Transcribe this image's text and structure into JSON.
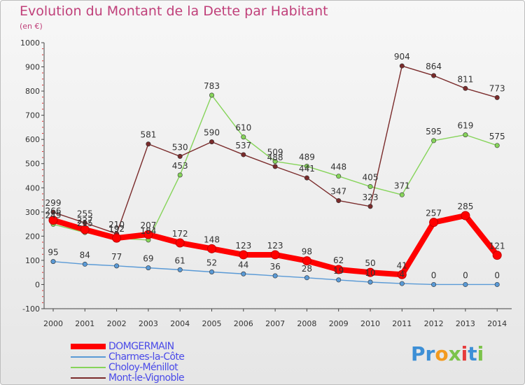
{
  "title": "Evolution du Montant de la Dette par Habitant",
  "unit_label": "(en €)",
  "brand": {
    "text": "Proxiti",
    "letters": [
      {
        "ch": "P",
        "color": "#3d8fd6"
      },
      {
        "ch": "r",
        "color": "#3d8fd6"
      },
      {
        "ch": "o",
        "color": "#f39a1f"
      },
      {
        "ch": "x",
        "color": "#7cc34b"
      },
      {
        "ch": "i",
        "color": "#e63c3c"
      },
      {
        "ch": "t",
        "color": "#3d8fd6"
      },
      {
        "ch": "i",
        "color": "#7cc34b"
      }
    ]
  },
  "chart_data": {
    "type": "line",
    "title": "Evolution du Montant de la Dette par Habitant",
    "ylabel": "(en €)",
    "xlabel": "",
    "x": [
      "2000",
      "2001",
      "2002",
      "2003",
      "2004",
      "2005",
      "2006",
      "2007",
      "2008",
      "2009",
      "2010",
      "2011",
      "2012",
      "2013",
      "2014"
    ],
    "ylim": [
      -100,
      1000
    ],
    "yticks": [
      -100,
      0,
      100,
      200,
      300,
      400,
      500,
      600,
      700,
      800,
      900,
      1000
    ],
    "grid": false,
    "legend_position": "bottom-left",
    "series": [
      {
        "name": "DOMGERMAIN",
        "color": "#ff0000",
        "emphasis": true,
        "values": [
          266,
          227,
          192,
          207,
          172,
          148,
          123,
          123,
          98,
          62,
          50,
          41,
          257,
          285,
          121
        ]
      },
      {
        "name": "Charmes-la-Côte",
        "color": "#5a9ad6",
        "values": [
          95,
          84,
          77,
          69,
          61,
          52,
          44,
          36,
          28,
          19,
          10,
          4,
          0,
          0,
          0
        ]
      },
      {
        "name": "Choloy-Ménillot",
        "color": "#86d45a",
        "values": [
          249,
          215,
          192,
          184,
          453,
          783,
          610,
          509,
          489,
          448,
          405,
          371,
          595,
          619,
          575
        ]
      },
      {
        "name": "Mont-le-Vignoble",
        "color": "#7a2b2b",
        "values": [
          299,
          255,
          210,
          581,
          530,
          590,
          537,
          488,
          441,
          347,
          323,
          904,
          864,
          811,
          773
        ]
      }
    ]
  }
}
